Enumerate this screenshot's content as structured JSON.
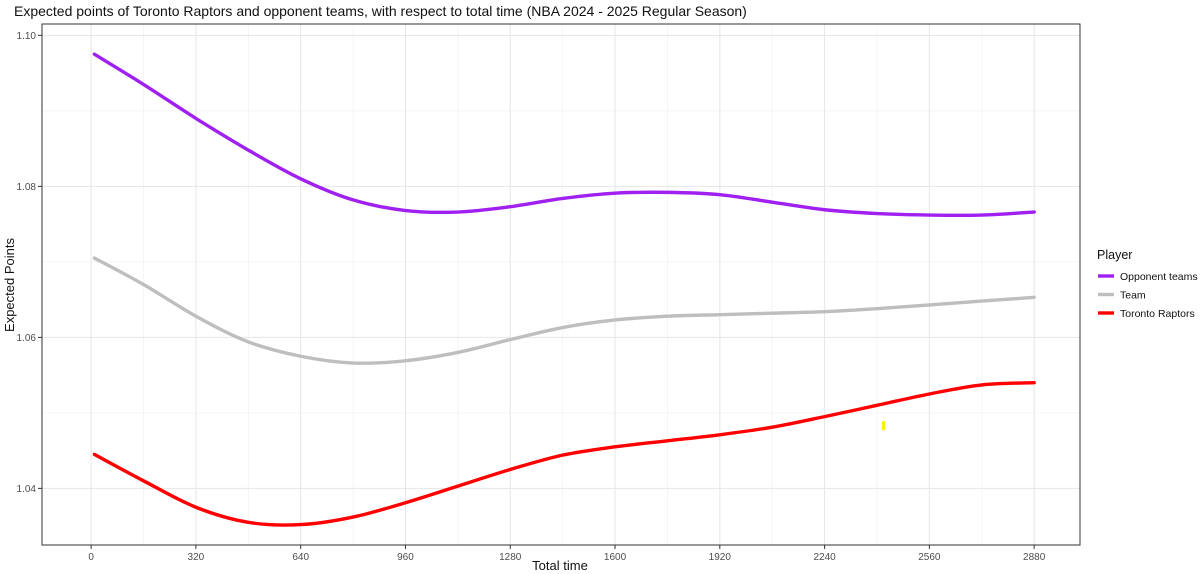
{
  "chart_data": {
    "type": "line",
    "title": "Expected points of Toronto Raptors and opponent teams, with respect to total time (NBA 2024 - 2025 Regular Season)",
    "xlabel": "Total time",
    "ylabel": "Expected Points",
    "xlim": [
      -150,
      3020
    ],
    "ylim": [
      1.0325,
      1.1015
    ],
    "xticks": [
      0,
      320,
      640,
      960,
      1280,
      1600,
      1920,
      2240,
      2560,
      2880
    ],
    "xtick_labels": [
      "0",
      "320",
      "640",
      "960",
      "1280",
      "1600",
      "1920",
      "2240",
      "2560",
      "2880"
    ],
    "yticks": [
      1.04,
      1.06,
      1.08,
      1.1
    ],
    "ytick_labels": [
      "1.04",
      "1.06",
      "1.08",
      "1.10"
    ],
    "grid": true,
    "legend": {
      "title": "Player",
      "placement": "right"
    },
    "x": [
      10,
      160,
      320,
      480,
      640,
      800,
      960,
      1120,
      1280,
      1440,
      1600,
      1760,
      1920,
      2080,
      2240,
      2400,
      2560,
      2720,
      2880
    ],
    "series": [
      {
        "name": "Opponent teams",
        "color": "#a020f0",
        "values": [
          1.0975,
          1.0935,
          1.089,
          1.0848,
          1.081,
          1.0782,
          1.0768,
          1.0766,
          1.0773,
          1.0784,
          1.0791,
          1.0792,
          1.0789,
          1.0779,
          1.0769,
          1.0764,
          1.0762,
          1.0762,
          1.0766
        ]
      },
      {
        "name": "Team",
        "color": "#bebebe",
        "values": [
          1.0705,
          1.067,
          1.0628,
          1.0594,
          1.0575,
          1.0566,
          1.0569,
          1.058,
          1.0597,
          1.0613,
          1.0623,
          1.0628,
          1.063,
          1.0632,
          1.0634,
          1.0638,
          1.0643,
          1.0648,
          1.0653
        ]
      },
      {
        "name": "Toronto Raptors",
        "color": "#ff0000",
        "values": [
          1.0445,
          1.041,
          1.0375,
          1.0355,
          1.0352,
          1.0362,
          1.0381,
          1.0403,
          1.0425,
          1.0444,
          1.0455,
          1.0463,
          1.0471,
          1.0481,
          1.0495,
          1.051,
          1.0525,
          1.0537,
          1.054
        ]
      }
    ],
    "annotations": [
      {
        "type": "mark",
        "color": "#ffee00",
        "x": 2420,
        "y": 1.0483
      }
    ]
  }
}
